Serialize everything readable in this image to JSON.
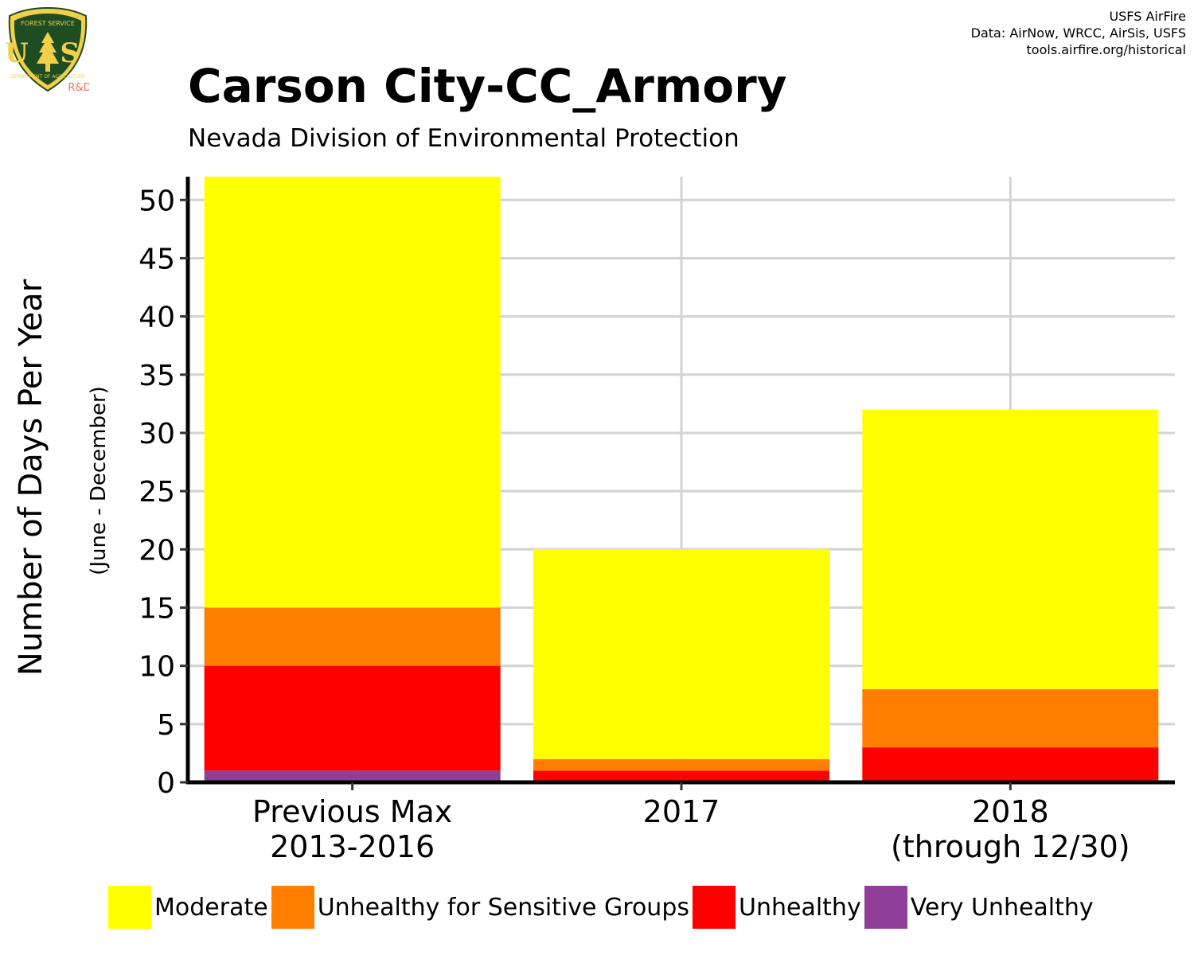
{
  "header": {
    "title": "Carson City-CC_Armory",
    "subtitle": "Nevada Division of Environmental Protection",
    "credits": [
      "USFS AirFire",
      "Data: AirNow, WRCC, AirSis, USFS",
      "tools.airfire.org/historical"
    ]
  },
  "logo": {
    "icon": "usfs-shield-icon",
    "top_text": "FOREST SERVICE",
    "letters": "U S",
    "bottom_text": "DEPARTMENT OF AGRICULTURE",
    "rd_label": "R&D"
  },
  "chart_data": {
    "type": "bar",
    "stacked": true,
    "categories": [
      [
        "Previous Max",
        "2013-2016"
      ],
      [
        "2017"
      ],
      [
        "2018",
        "(through 12/30)"
      ]
    ],
    "series": [
      {
        "name": "Very Unhealthy",
        "color": "#8F3F97",
        "values": [
          1,
          0,
          0
        ]
      },
      {
        "name": "Unhealthy",
        "color": "#FF0000",
        "values": [
          9,
          1,
          3
        ]
      },
      {
        "name": "Unhealthy for Sensitive Groups",
        "color": "#FF7E00",
        "values": [
          5,
          1,
          5
        ]
      },
      {
        "name": "Moderate",
        "color": "#FFFF00",
        "values": [
          37,
          18,
          24
        ]
      }
    ],
    "legend_order": [
      "Moderate",
      "Unhealthy for Sensitive Groups",
      "Unhealthy",
      "Very Unhealthy"
    ],
    "ylabel": "Number of Days Per Year",
    "ylabel_sub": "(June - December)",
    "ylim": [
      0,
      52
    ],
    "yticks": [
      0,
      5,
      10,
      15,
      20,
      25,
      30,
      35,
      40,
      45,
      50
    ],
    "grid": true,
    "legend_position": "bottom",
    "gridline_color": "#D3D3D3"
  }
}
